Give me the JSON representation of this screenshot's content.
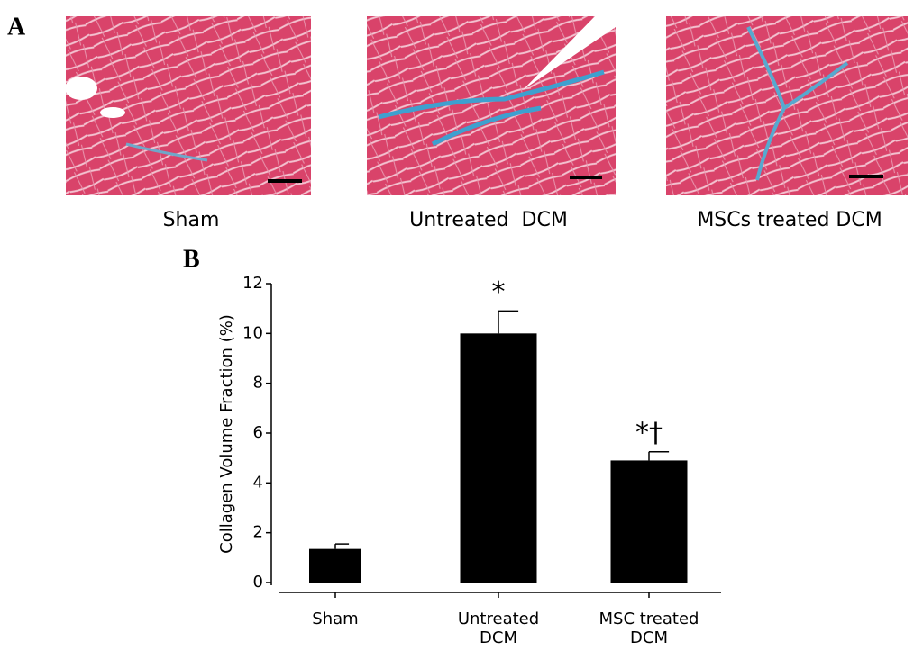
{
  "panel_a": {
    "label": "A",
    "captions": [
      "Sham",
      "Untreated  DCM",
      "MSCs treated DCM"
    ]
  },
  "chart_data": {
    "type": "bar",
    "label": "B",
    "y_label": "Collagen Volume Fraction (%)",
    "categories": [
      "Sham",
      "Untreated\nDCM",
      "MSC treated\nDCM"
    ],
    "values": [
      1.35,
      10.0,
      4.9
    ],
    "errors": [
      0.2,
      0.9,
      0.35
    ],
    "annotations": [
      null,
      "*",
      "*†"
    ],
    "color": "#000000",
    "ylim": [
      0,
      12
    ],
    "yticks": [
      0,
      2,
      4,
      6,
      8,
      10,
      12
    ]
  }
}
